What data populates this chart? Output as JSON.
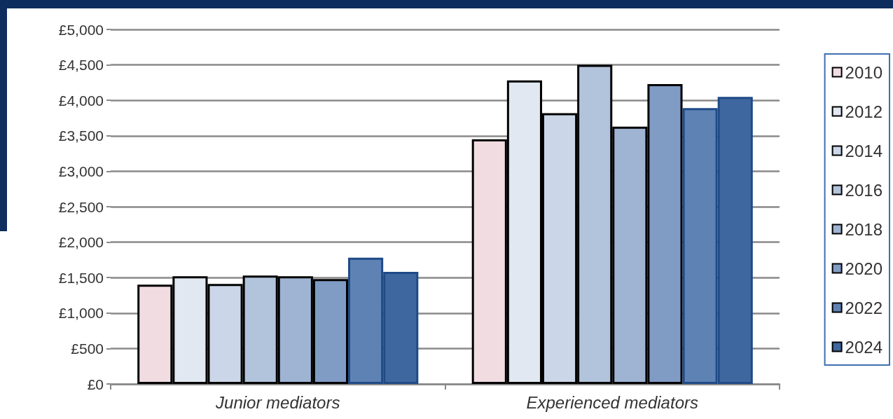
{
  "chart_data": {
    "type": "bar",
    "categories": [
      "Junior mediators",
      "Experienced mediators"
    ],
    "series": [
      {
        "name": "2010",
        "color": "#f1dce2",
        "values": [
          1400,
          3450
        ]
      },
      {
        "name": "2012",
        "color": "#e1e8f1",
        "values": [
          1520,
          4280
        ]
      },
      {
        "name": "2014",
        "color": "#cbd7e8",
        "values": [
          1410,
          3820
        ]
      },
      {
        "name": "2016",
        "color": "#b2c3dc",
        "values": [
          1530,
          4500
        ]
      },
      {
        "name": "2018",
        "color": "#9fb4d3",
        "values": [
          1520,
          3630
        ]
      },
      {
        "name": "2020",
        "color": "#809cc5",
        "values": [
          1480,
          4230
        ]
      },
      {
        "name": "2022",
        "color": "#5f82b4",
        "values": [
          1780,
          3890
        ]
      },
      {
        "name": "2024",
        "color": "#3f679f",
        "values": [
          1580,
          4050
        ]
      }
    ],
    "ylim": [
      0,
      5000
    ],
    "yticks": [
      {
        "value": 0,
        "label": "£0"
      },
      {
        "value": 500,
        "label": "£500"
      },
      {
        "value": 1000,
        "label": "£1,000"
      },
      {
        "value": 1500,
        "label": "£1,500"
      },
      {
        "value": 2000,
        "label": "£2,000"
      },
      {
        "value": 2500,
        "label": "£2,500"
      },
      {
        "value": 3000,
        "label": "£3,000"
      },
      {
        "value": 3500,
        "label": "£3,500"
      },
      {
        "value": 4000,
        "label": "£4,000"
      },
      {
        "value": 4500,
        "label": "£4,500"
      },
      {
        "value": 5000,
        "label": "£5,000"
      }
    ],
    "grid": "y",
    "legend": "right"
  }
}
